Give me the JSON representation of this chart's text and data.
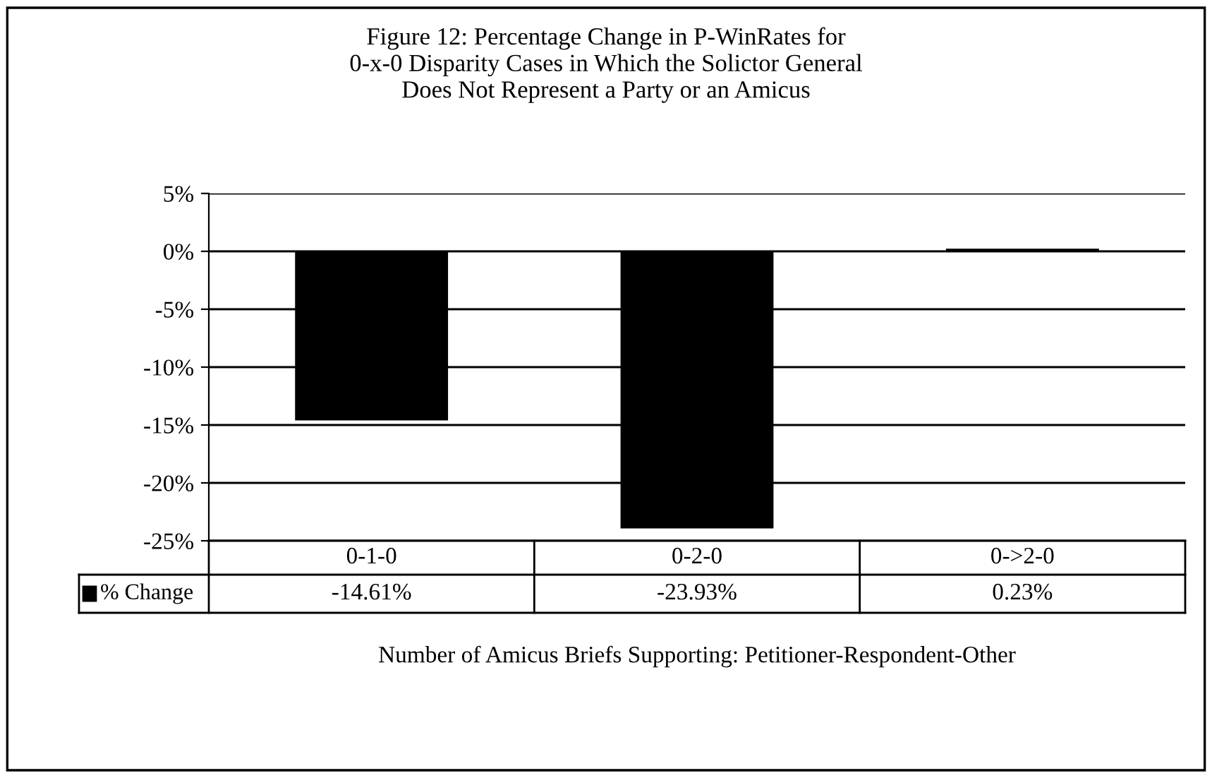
{
  "chart_data": {
    "type": "bar",
    "title": "Figure 12: Percentage Change in P-WinRates for\n0-x-0 Disparity Cases in Which the Solictor General\nDoes Not Represent a Party or an Amicus",
    "xlabel": "Number of Amicus Briefs Supporting: Petitioner-Respondent-Other",
    "categories": [
      "0-1-0",
      "0-2-0",
      "0->2-0"
    ],
    "series": [
      {
        "name": "% Change",
        "color": "#000000",
        "values": [
          -14.61,
          -23.93,
          0.23
        ],
        "value_labels": [
          "-14.61%",
          "-23.93%",
          "0.23%"
        ]
      }
    ],
    "ylim": [
      -25,
      5
    ],
    "yticks": [
      {
        "value": -25,
        "label": "-25%"
      },
      {
        "value": -20,
        "label": "-20%"
      },
      {
        "value": -15,
        "label": "-15%"
      },
      {
        "value": -10,
        "label": "-10%"
      },
      {
        "value": -5,
        "label": "-5%"
      },
      {
        "value": 0,
        "label": "0%"
      },
      {
        "value": 5,
        "label": "5%"
      }
    ],
    "grid": "y"
  }
}
